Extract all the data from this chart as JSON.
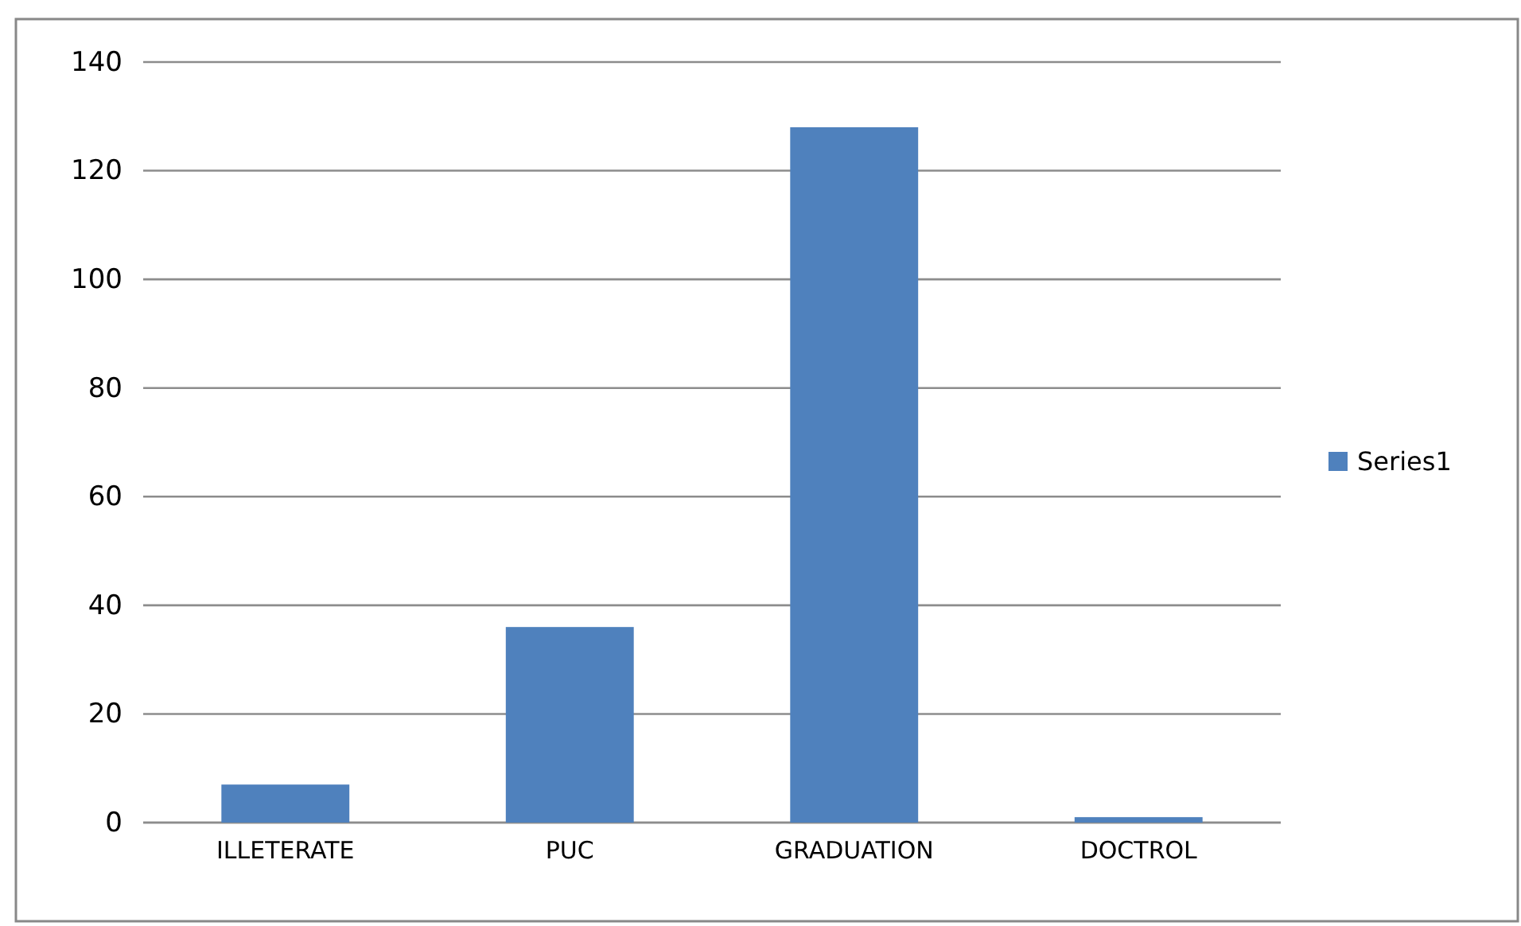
{
  "chart_data": {
    "type": "bar",
    "categories": [
      "ILLETERATE",
      "PUC",
      "GRADUATION",
      "DOCTROL"
    ],
    "series": [
      {
        "name": "Series1",
        "color": "#4f81bd",
        "values": [
          7,
          36,
          128,
          1
        ]
      }
    ],
    "ylim": [
      0,
      140
    ],
    "yticks": [
      0,
      20,
      40,
      60,
      80,
      100,
      120,
      140
    ],
    "grid": "y",
    "legend": "right"
  }
}
